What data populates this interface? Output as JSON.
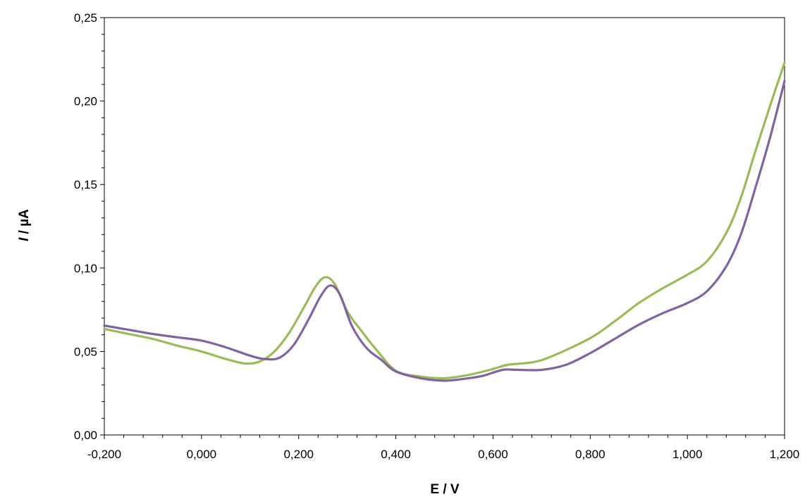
{
  "chart_data": {
    "type": "line",
    "title": "",
    "xlabel": "E / V",
    "ylabel_italic": "I",
    "ylabel_rest": " / µA",
    "xlim": [
      -0.2,
      1.2
    ],
    "ylim": [
      0,
      0.25
    ],
    "x_ticks": [
      -0.2,
      0.0,
      0.2,
      0.4,
      0.6,
      0.8,
      1.0,
      1.2
    ],
    "x_tick_labels": [
      "-0,200",
      "0,000",
      "0,200",
      "0,400",
      "0,600",
      "0,800",
      "1,000",
      "1,200"
    ],
    "y_ticks": [
      0,
      0.05,
      0.1,
      0.15,
      0.2,
      0.25
    ],
    "y_tick_labels": [
      "0,00",
      "0,05",
      "0,10",
      "0,15",
      "0,20",
      "0,25"
    ],
    "grid": false,
    "legend": "none",
    "series": [
      {
        "color": "#9bbb59",
        "points": [
          [
            -0.2,
            0.0635
          ],
          [
            -0.15,
            0.0605
          ],
          [
            -0.1,
            0.0575
          ],
          [
            -0.05,
            0.0535
          ],
          [
            0.0,
            0.05
          ],
          [
            0.05,
            0.0455
          ],
          [
            0.09,
            0.0428
          ],
          [
            0.12,
            0.044
          ],
          [
            0.15,
            0.05
          ],
          [
            0.18,
            0.061
          ],
          [
            0.21,
            0.076
          ],
          [
            0.235,
            0.089
          ],
          [
            0.255,
            0.0945
          ],
          [
            0.275,
            0.09
          ],
          [
            0.3,
            0.074
          ],
          [
            0.33,
            0.062
          ],
          [
            0.36,
            0.051
          ],
          [
            0.4,
            0.0385
          ],
          [
            0.45,
            0.035
          ],
          [
            0.5,
            0.034
          ],
          [
            0.55,
            0.036
          ],
          [
            0.6,
            0.0395
          ],
          [
            0.63,
            0.042
          ],
          [
            0.68,
            0.0435
          ],
          [
            0.72,
            0.047
          ],
          [
            0.8,
            0.058
          ],
          [
            0.85,
            0.068
          ],
          [
            0.9,
            0.079
          ],
          [
            0.95,
            0.088
          ],
          [
            1.0,
            0.096
          ],
          [
            1.04,
            0.104
          ],
          [
            1.08,
            0.121
          ],
          [
            1.11,
            0.142
          ],
          [
            1.14,
            0.17
          ],
          [
            1.17,
            0.197
          ],
          [
            1.2,
            0.223
          ]
        ]
      },
      {
        "color": "#8064a2",
        "points": [
          [
            -0.2,
            0.0655
          ],
          [
            -0.15,
            0.063
          ],
          [
            -0.1,
            0.0605
          ],
          [
            -0.05,
            0.0585
          ],
          [
            0.0,
            0.0565
          ],
          [
            0.05,
            0.0525
          ],
          [
            0.1,
            0.0475
          ],
          [
            0.13,
            0.0455
          ],
          [
            0.16,
            0.0462
          ],
          [
            0.19,
            0.054
          ],
          [
            0.22,
            0.069
          ],
          [
            0.245,
            0.083
          ],
          [
            0.265,
            0.0895
          ],
          [
            0.285,
            0.084
          ],
          [
            0.31,
            0.065
          ],
          [
            0.34,
            0.052
          ],
          [
            0.37,
            0.045
          ],
          [
            0.4,
            0.038
          ],
          [
            0.45,
            0.034
          ],
          [
            0.5,
            0.0325
          ],
          [
            0.55,
            0.034
          ],
          [
            0.58,
            0.0355
          ],
          [
            0.62,
            0.039
          ],
          [
            0.65,
            0.039
          ],
          [
            0.7,
            0.039
          ],
          [
            0.75,
            0.042
          ],
          [
            0.8,
            0.049
          ],
          [
            0.85,
            0.0575
          ],
          [
            0.9,
            0.066
          ],
          [
            0.95,
            0.073
          ],
          [
            1.0,
            0.079
          ],
          [
            1.04,
            0.086
          ],
          [
            1.08,
            0.101
          ],
          [
            1.11,
            0.12
          ],
          [
            1.14,
            0.148
          ],
          [
            1.17,
            0.178
          ],
          [
            1.2,
            0.212
          ]
        ]
      }
    ]
  }
}
